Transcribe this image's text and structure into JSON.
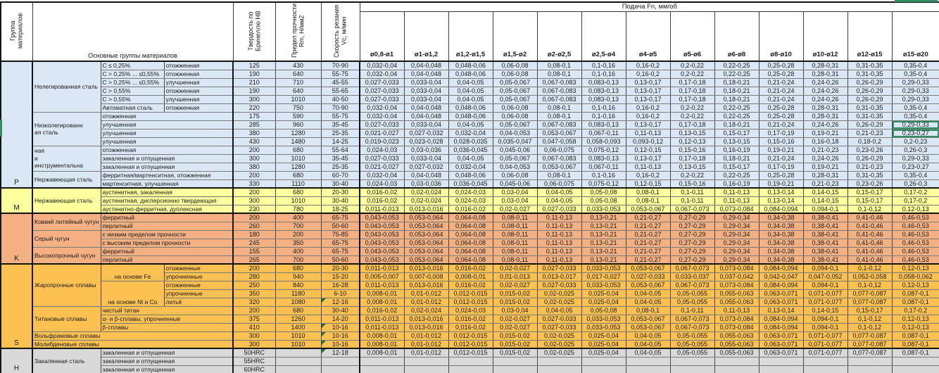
{
  "table": {
    "header": {
      "group_col": "Группа материалов",
      "materials_col": "Основные группы материалов",
      "hb_col": "Твердость по Бринеллю HB",
      "rm_col": "Предел прочности Rm, Н/мм2",
      "vc_col": "Скорость резания Vc, м/мин",
      "feed_title": "Подача Fn, мм/об",
      "feed_cols": [
        "ø0,8-ø1",
        "ø1-ø1,2",
        "ø1,2-ø1,5",
        "ø1,5-ø2",
        "ø2-ø2,5",
        "ø2,5-ø4",
        "ø4-ø5",
        "ø5-ø6",
        "ø6-ø8",
        "ø8-ø10",
        "ø10-ø12",
        "ø12-ø15",
        "ø15-ø20"
      ]
    },
    "feed_patterns": {
      "A": [
        "0,032-0,04",
        "0,04-0,048",
        "0,048-0,06",
        "0,06-0,08",
        "0,08-0,1",
        "0,1-0,16",
        "0,16-0,2",
        "0,2-0,22",
        "0,22-0,25",
        "0,25-0,28",
        "0,28-0,31",
        "0,31-0,35",
        "0,35-0,4"
      ],
      "B": [
        "0,027-0,033",
        "0,033-0,04",
        "0,04-0,05",
        "0,05-0,067",
        "0,067-0,083",
        "0,083-0,13",
        "0,13-0,17",
        "0,17-0,18",
        "0,18-0,21",
        "0,21-0,24",
        "0,24-0,26",
        "0,26-0,29",
        "0,29-0,33"
      ],
      "C": [
        "0,021-0,027",
        "0,027-0,032",
        "0,032-0,04",
        "0,04-0,053",
        "0,053-0,067",
        "0,067-0,11",
        "0,11-0,13",
        "0,13-0,15",
        "0,15-0,17",
        "0,17-0,19",
        "0,19-0,21",
        "0,21-0,23",
        "0,23-0,27"
      ],
      "D": [
        "0,019-0,023",
        "0,023-0,028",
        "0,028-0,035",
        "0,035-0,047",
        "0,047-0,058",
        "0,058-0,093",
        "0,093-0,12",
        "0,12-0,13",
        "0,13-0,15",
        "0,15-0,16",
        "0,16-0,18",
        "0,18-0,2",
        "0,2-0,23"
      ],
      "E": [
        "0,024-0,03",
        "0,03-0,036",
        "0,036-0,045",
        "0,045-0,06",
        "0,06-0,075",
        "0,075-0,12",
        "0,12-0,15",
        "0,15-0,16",
        "0,16-0,19",
        "0,19-0,21",
        "0,21-0,23",
        "0,23-0,26",
        "0,26-0,3"
      ],
      "F": [
        "0,016-0,02",
        "0,02-0,024",
        "0,024-0,03",
        "0,03-0,04",
        "0,04-0,05",
        "0,05-0,08",
        "0,08-0,1",
        "0,1-0,11",
        "0,11-0,13",
        "0,13-0,14",
        "0,14-0,15",
        "0,15-0,17",
        "0,17-0,2"
      ],
      "G": [
        "0,011-0,013",
        "0,013-0,016",
        "0,016-0,02",
        "0,02-0,027",
        "0,027-0,033",
        "0,033-0,053",
        "0,053-0,067",
        "0,067-0,073",
        "0,073-0,084",
        "0,084-0,094",
        "0,094-0,1",
        "0,1-0,12",
        "0,12-0,13"
      ],
      "H": [
        "0,043-0,053",
        "0,053-0,064",
        "0,064-0,08",
        "0,08-0,11",
        "0,11-0,13",
        "0,13-0,21",
        "0,21-0,27",
        "0,27-0,29",
        "0,29-0,34",
        "0,34-0,38",
        "0,38-0,41",
        "0,41-0,46",
        "0,46-0,53"
      ],
      "I": [
        "0,005-0,007",
        "0,007-0,008",
        "0,008-0,01",
        "0,01-0,013",
        "0,013-0,017",
        "0,017-0,027",
        "0,027-0,033",
        "0,033-0,037",
        "0,037-0,042",
        "0,042-0,047",
        "0,047-0,052",
        "0,052-0,058",
        "0,058-0,062"
      ],
      "J": [
        "0,008-0,01",
        "0,01-0,012",
        "0,012-0,015",
        "0,015-0,02",
        "0,02-0,025",
        "0,025-0,04",
        "0,04-0,05",
        "0,05-0,055",
        "0,055-0,063",
        "0,063-0,071",
        "0,071-0,077",
        "0,077-0,087",
        "0,087-0,1"
      ],
      "EMPTY": [
        "",
        "",
        "",
        "",
        "",
        "",
        "",
        "",
        "",
        "",
        "",
        "",
        ""
      ]
    },
    "groups": [
      {
        "letter": "P",
        "color": "#dae7f4",
        "rows": [
          {
            "desc": [
              {
                "t": "Нелегированная сталь",
                "rs": 6
              },
              {
                "t": "C ≤ 0,25%"
              },
              {
                "t": "отожженная"
              }
            ],
            "hb": "125",
            "rm": "430",
            "vc": "70-90",
            "fp": "A"
          },
          {
            "desc": [
              {
                "t": "C > 0,25% ... ≤0,55%"
              },
              {
                "t": "отожженная"
              }
            ],
            "hb": "190",
            "rm": "640",
            "vc": "55-75",
            "fp": "A"
          },
          {
            "desc": [
              {
                "t": "C > 0,25% ... ≤0,55%"
              },
              {
                "t": "улучшенная"
              }
            ],
            "hb": "210",
            "rm": "710",
            "vc": "45-55",
            "fp": "B"
          },
          {
            "desc": [
              {
                "t": "C > 0,55%"
              },
              {
                "t": "отожженная"
              }
            ],
            "hb": "190",
            "rm": "640",
            "vc": "55-65",
            "fp": "B"
          },
          {
            "desc": [
              {
                "t": "C > 0,55%"
              },
              {
                "t": "улучшенная"
              }
            ],
            "hb": "300",
            "rm": "1010",
            "vc": "40-50",
            "fp": "B"
          },
          {
            "desc": [
              {
                "t": "Автоматная сталь"
              },
              {
                "t": "отожженная"
              }
            ],
            "hb": "220",
            "rm": "750",
            "vc": "70-90",
            "fp": "A"
          },
          {
            "desc": [
              {
                "t": "Низколегированн\nая сталь",
                "rs": 4
              },
              {
                "t": "отожженная",
                "cs": 2
              }
            ],
            "hb": "175",
            "rm": "590",
            "vc": "55-75",
            "fp": "A"
          },
          {
            "desc": [
              {
                "t": "улучшенная",
                "cs": 2
              }
            ],
            "hb": "285",
            "rm": "960",
            "vc": "35-45",
            "fp": "B",
            "sel": true
          },
          {
            "desc": [
              {
                "t": "улучшенная",
                "cs": 2
              }
            ],
            "hb": "380",
            "rm": "1280",
            "vc": "25-35",
            "fp": "C",
            "sel": true
          },
          {
            "desc": [
              {
                "t": "улучшенная",
                "cs": 2
              }
            ],
            "hb": "430",
            "rm": "1480",
            "vc": "14-25",
            "fp": "D"
          },
          {
            "desc": [
              {
                "t": "ная\nи\nинструментальна",
                "rs": 3
              },
              {
                "t": "отожженная",
                "cs": 2
              }
            ],
            "hb": "200",
            "rm": "680",
            "vc": "55-64",
            "fp": "E"
          },
          {
            "desc": [
              {
                "t": "закаленная и отпущенная",
                "cs": 2
              }
            ],
            "hb": "300",
            "rm": "1010",
            "vc": "35-45",
            "fp": "B"
          },
          {
            "desc": [
              {
                "t": "закаленная и отпущенная",
                "cs": 2
              }
            ],
            "hb": "380",
            "rm": "1280",
            "vc": "25-35",
            "fp": "C"
          },
          {
            "desc": [
              {
                "t": "Нержавеющая сталь",
                "rs": 2
              },
              {
                "t": "ферритная/мартенситная, отожженная",
                "cs": 2
              }
            ],
            "hb": "200",
            "rm": "680",
            "vc": "60-70",
            "fp": "A"
          },
          {
            "desc": [
              {
                "t": "мартенситная, улучшенная",
                "cs": 2
              }
            ],
            "hb": "330",
            "rm": "1110",
            "vc": "30-40",
            "fp": "E"
          }
        ]
      },
      {
        "letter": "M",
        "color": "#feff9d",
        "rows": [
          {
            "desc": [
              {
                "t": "Нержавеющая сталь",
                "rs": 3
              },
              {
                "t": "аустенитная, закаленная",
                "cs": 2
              }
            ],
            "hb": "200",
            "rm": "680",
            "vc": "20-30",
            "fp": "F"
          },
          {
            "desc": [
              {
                "t": "аустенитная, дисперсионно твердеющая",
                "cs": 2
              }
            ],
            "hb": "300",
            "rm": "1010",
            "vc": "30-40",
            "fp": "F"
          },
          {
            "desc": [
              {
                "t": "аустенитно-ферритная, дуплексная",
                "cs": 2
              }
            ],
            "hb": "230",
            "rm": "780",
            "vc": "18-25",
            "fp": "G"
          }
        ]
      },
      {
        "letter": "K",
        "color": "#f3b183",
        "rows": [
          {
            "desc": [
              {
                "t": "Ковкий литейный чугун",
                "rs": 2
              },
              {
                "t": "ферритный",
                "cs": 2
              }
            ],
            "hb": "200",
            "rm": "400",
            "vc": "65-75",
            "fp": "H"
          },
          {
            "desc": [
              {
                "t": "перлитный",
                "cs": 2
              }
            ],
            "hb": "260",
            "rm": "700",
            "vc": "50-60",
            "fp": "H"
          },
          {
            "desc": [
              {
                "t": "Серый чугун",
                "rs": 2
              },
              {
                "t": "с низким пределом прочности",
                "cs": 2
              }
            ],
            "hb": "180",
            "rm": "200",
            "vc": "75-85",
            "fp": "H"
          },
          {
            "desc": [
              {
                "t": "с высоким пределом прочности",
                "cs": 2
              }
            ],
            "hb": "245",
            "rm": "350",
            "vc": "65-75",
            "fp": "H"
          },
          {
            "desc": [
              {
                "t": "Высокопрочный чугун",
                "rs": 2
              },
              {
                "t": "ферритный",
                "cs": 2
              }
            ],
            "hb": "155",
            "rm": "400",
            "vc": "65-75",
            "fp": "H"
          },
          {
            "desc": [
              {
                "t": "перлитный",
                "cs": 2
              }
            ],
            "hb": "265",
            "rm": "700",
            "vc": "50-60",
            "fp": "H"
          }
        ]
      },
      {
        "letter": "S",
        "color": "#fcc150",
        "rows": [
          {
            "desc": [
              {
                "t": "Жаропрочные сплавы",
                "rs": 5
              },
              {
                "t": "на основе Fe",
                "rs": 2,
                "va": "bottom"
              },
              {
                "t": "отожженные"
              }
            ],
            "hb": "200",
            "rm": "680",
            "vc": "20-30",
            "fp": "G"
          },
          {
            "desc": [
              {
                "t": "упрочненные"
              }
            ],
            "hb": "280",
            "rm": "940",
            "vc": "15-20",
            "fp": "I"
          },
          {
            "desc": [
              {
                "t": "на основе Ni и Co",
                "rs": 3,
                "va": "bottom"
              },
              {
                "t": "отожженные"
              }
            ],
            "hb": "250",
            "rm": "840",
            "vc": "16-28",
            "fp": "G"
          },
          {
            "desc": [
              {
                "t": "упрочненные"
              }
            ],
            "hb": "350",
            "rm": "1180",
            "vc": "6-10",
            "fp": "J"
          },
          {
            "desc": [
              {
                "t": "литьё"
              }
            ],
            "hb": "320",
            "rm": "1080",
            "vc": "12-16",
            "fp": "J",
            "flag": true
          },
          {
            "desc": [
              {
                "t": "Титановые сплавы",
                "rs": 3
              },
              {
                "t": "чистый титан",
                "cs": 2
              }
            ],
            "hb": "200",
            "rm": "680",
            "vc": "30-40",
            "fp": "F"
          },
          {
            "desc": [
              {
                "t": "α- и β-сплавы, упрочненные",
                "cs": 2
              }
            ],
            "hb": "375",
            "rm": "1260",
            "vc": "14-20",
            "fp": "G"
          },
          {
            "desc": [
              {
                "t": "β-сплавы",
                "cs": 2
              }
            ],
            "hb": "410",
            "rm": "1400",
            "vc": "10-16",
            "fp": "G",
            "flag": true
          },
          {
            "desc": [
              {
                "t": "Вольфрамовые сплавы",
                "cs": 3
              }
            ],
            "hb": "300",
            "rm": "1010",
            "vc": "10-16",
            "fp": "J",
            "flag": true
          },
          {
            "desc": [
              {
                "t": "Молибденовые сплавы",
                "cs": 3
              }
            ],
            "hb": "300",
            "rm": "1010",
            "vc": "10-16",
            "fp": "J",
            "flag": true
          }
        ]
      },
      {
        "letter": "H",
        "color": "#d9d9d9",
        "rows": [
          {
            "desc": [
              {
                "t": "Закаленная сталь",
                "rs": 3
              },
              {
                "t": "закаленная и отпущенная",
                "cs": 2
              }
            ],
            "hb": "50HRC",
            "rm": "",
            "vc": "12-18",
            "fp": "J",
            "flag": true
          },
          {
            "desc": [
              {
                "t": "закаленная и отпущенная",
                "cs": 2
              }
            ],
            "hb": "55HRC",
            "rm": "",
            "vc": "",
            "fp": "EMPTY"
          },
          {
            "desc": [
              {
                "t": "закаленная и отпущенная",
                "cs": 2
              }
            ],
            "hb": "60HRC",
            "rm": "",
            "vc": "",
            "fp": "EMPTY"
          }
        ]
      }
    ]
  },
  "colors": {
    "selection_green": "#2f8f63",
    "flag_green": "#1d6f42",
    "group_p": "#dae7f4",
    "group_m": "#feff9d",
    "group_k": "#f3b183",
    "group_s": "#fcc150",
    "group_h": "#d9d9d9"
  }
}
